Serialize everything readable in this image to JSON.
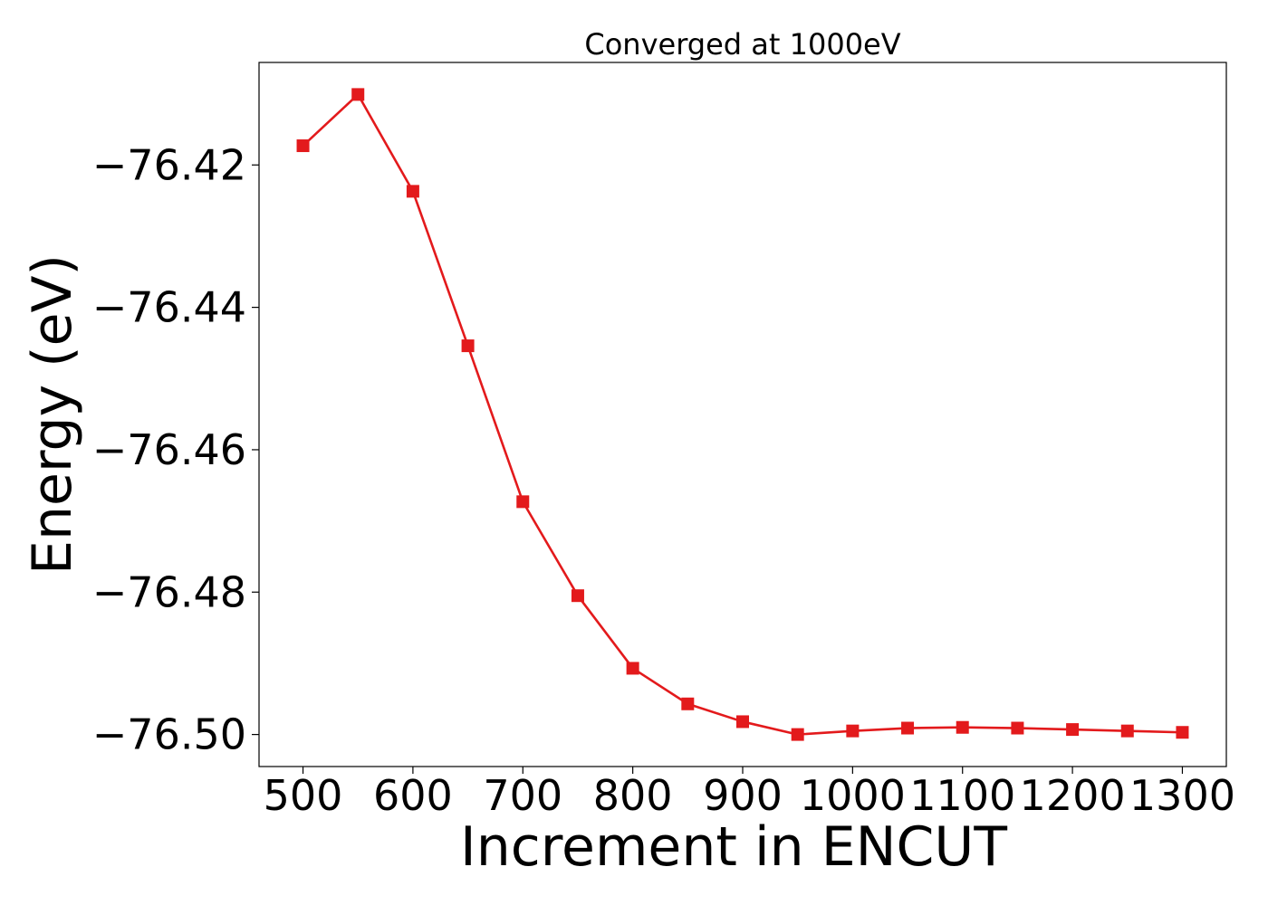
{
  "chart_data": {
    "type": "line",
    "title": "Converged at 1000eV",
    "xlabel": "Increment in ENCUT",
    "ylabel": "Energy (eV)",
    "x": [
      500,
      550,
      600,
      650,
      700,
      750,
      800,
      850,
      900,
      950,
      1000,
      1050,
      1100,
      1150,
      1200,
      1250,
      1300
    ],
    "series": [
      {
        "values": [
          -76.4173,
          -76.4101,
          -76.4237,
          -76.4454,
          -76.4673,
          -76.4805,
          -76.4907,
          -76.4957,
          -76.4982,
          -76.5,
          -76.4995,
          -76.4991,
          -76.499,
          -76.4991,
          -76.4993,
          -76.4995,
          -76.4997
        ],
        "color": "#e31a1c",
        "marker": "square"
      }
    ],
    "xlim": [
      460,
      1340
    ],
    "ylim": [
      -76.5045,
      -76.4056
    ],
    "xticks": [
      500,
      600,
      700,
      800,
      900,
      1000,
      1100,
      1200,
      1300
    ],
    "xtick_labels": [
      "500",
      "600",
      "700",
      "800",
      "900",
      "1000",
      "1100",
      "1200",
      "1300"
    ],
    "yticks": [
      -76.42,
      -76.44,
      -76.46,
      -76.48,
      -76.5
    ],
    "ytick_labels": [
      "−76.42",
      "−76.44",
      "−76.46",
      "−76.48",
      "−76.50"
    ],
    "grid": false,
    "legend": false
  }
}
